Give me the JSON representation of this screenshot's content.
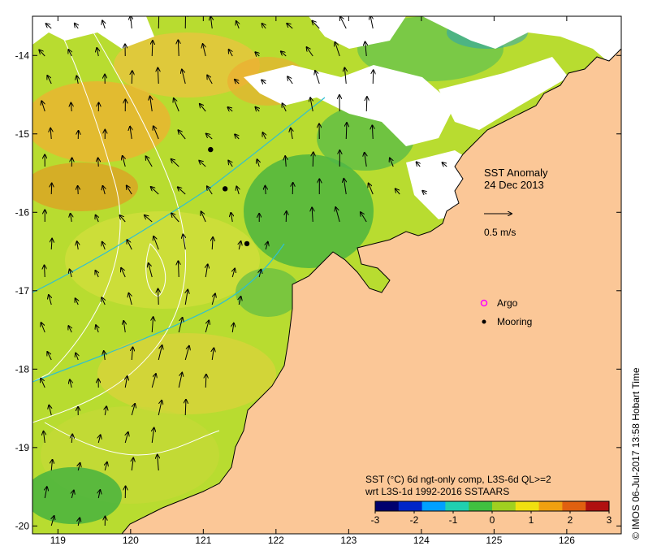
{
  "map": {
    "title_line1": "SST Anomaly",
    "title_line2": "24 Dec 2013",
    "scale_arrow_label": "0.5 m/s",
    "lon_ticks": [
      "119",
      "120",
      "121",
      "122",
      "123",
      "124",
      "125",
      "126"
    ],
    "lat_ticks": [
      "-14",
      "-15",
      "-16",
      "-17",
      "-18",
      "-19",
      "-20"
    ],
    "lon_range": [
      118.65,
      126.75
    ],
    "lat_range": [
      -20.1,
      -13.5
    ]
  },
  "legend": {
    "argo_label": "Argo",
    "mooring_label": "Mooring",
    "argo_color": "#ff00ff",
    "mooring_color": "#000000"
  },
  "moorings": [
    {
      "lon": 121.1,
      "lat": -15.2
    },
    {
      "lon": 121.3,
      "lat": -15.7
    },
    {
      "lon": 121.6,
      "lat": -16.4
    }
  ],
  "colorbar": {
    "caption_line1": "SST (°C) 6d ngt-only comp, L3S-6d QL>=2",
    "caption_line2": "wrt L3S-1d 1992-2016 SSTAARS",
    "ticks": [
      "-3",
      "-2",
      "-1",
      "0",
      "1",
      "2",
      "3"
    ],
    "colors": [
      "#00006e",
      "#0026c8",
      "#00a0ff",
      "#20d0b0",
      "#40c040",
      "#a0d020",
      "#f0e010",
      "#f0a010",
      "#e06010",
      "#b01010"
    ]
  },
  "credit": "©  IMOS 06-Jul-2017 13:58 Hobart Time",
  "colors": {
    "land": "#fbc797",
    "sea_base": "#b8dc30",
    "contour": "#ffffff",
    "current_line": "#30c0d0"
  }
}
